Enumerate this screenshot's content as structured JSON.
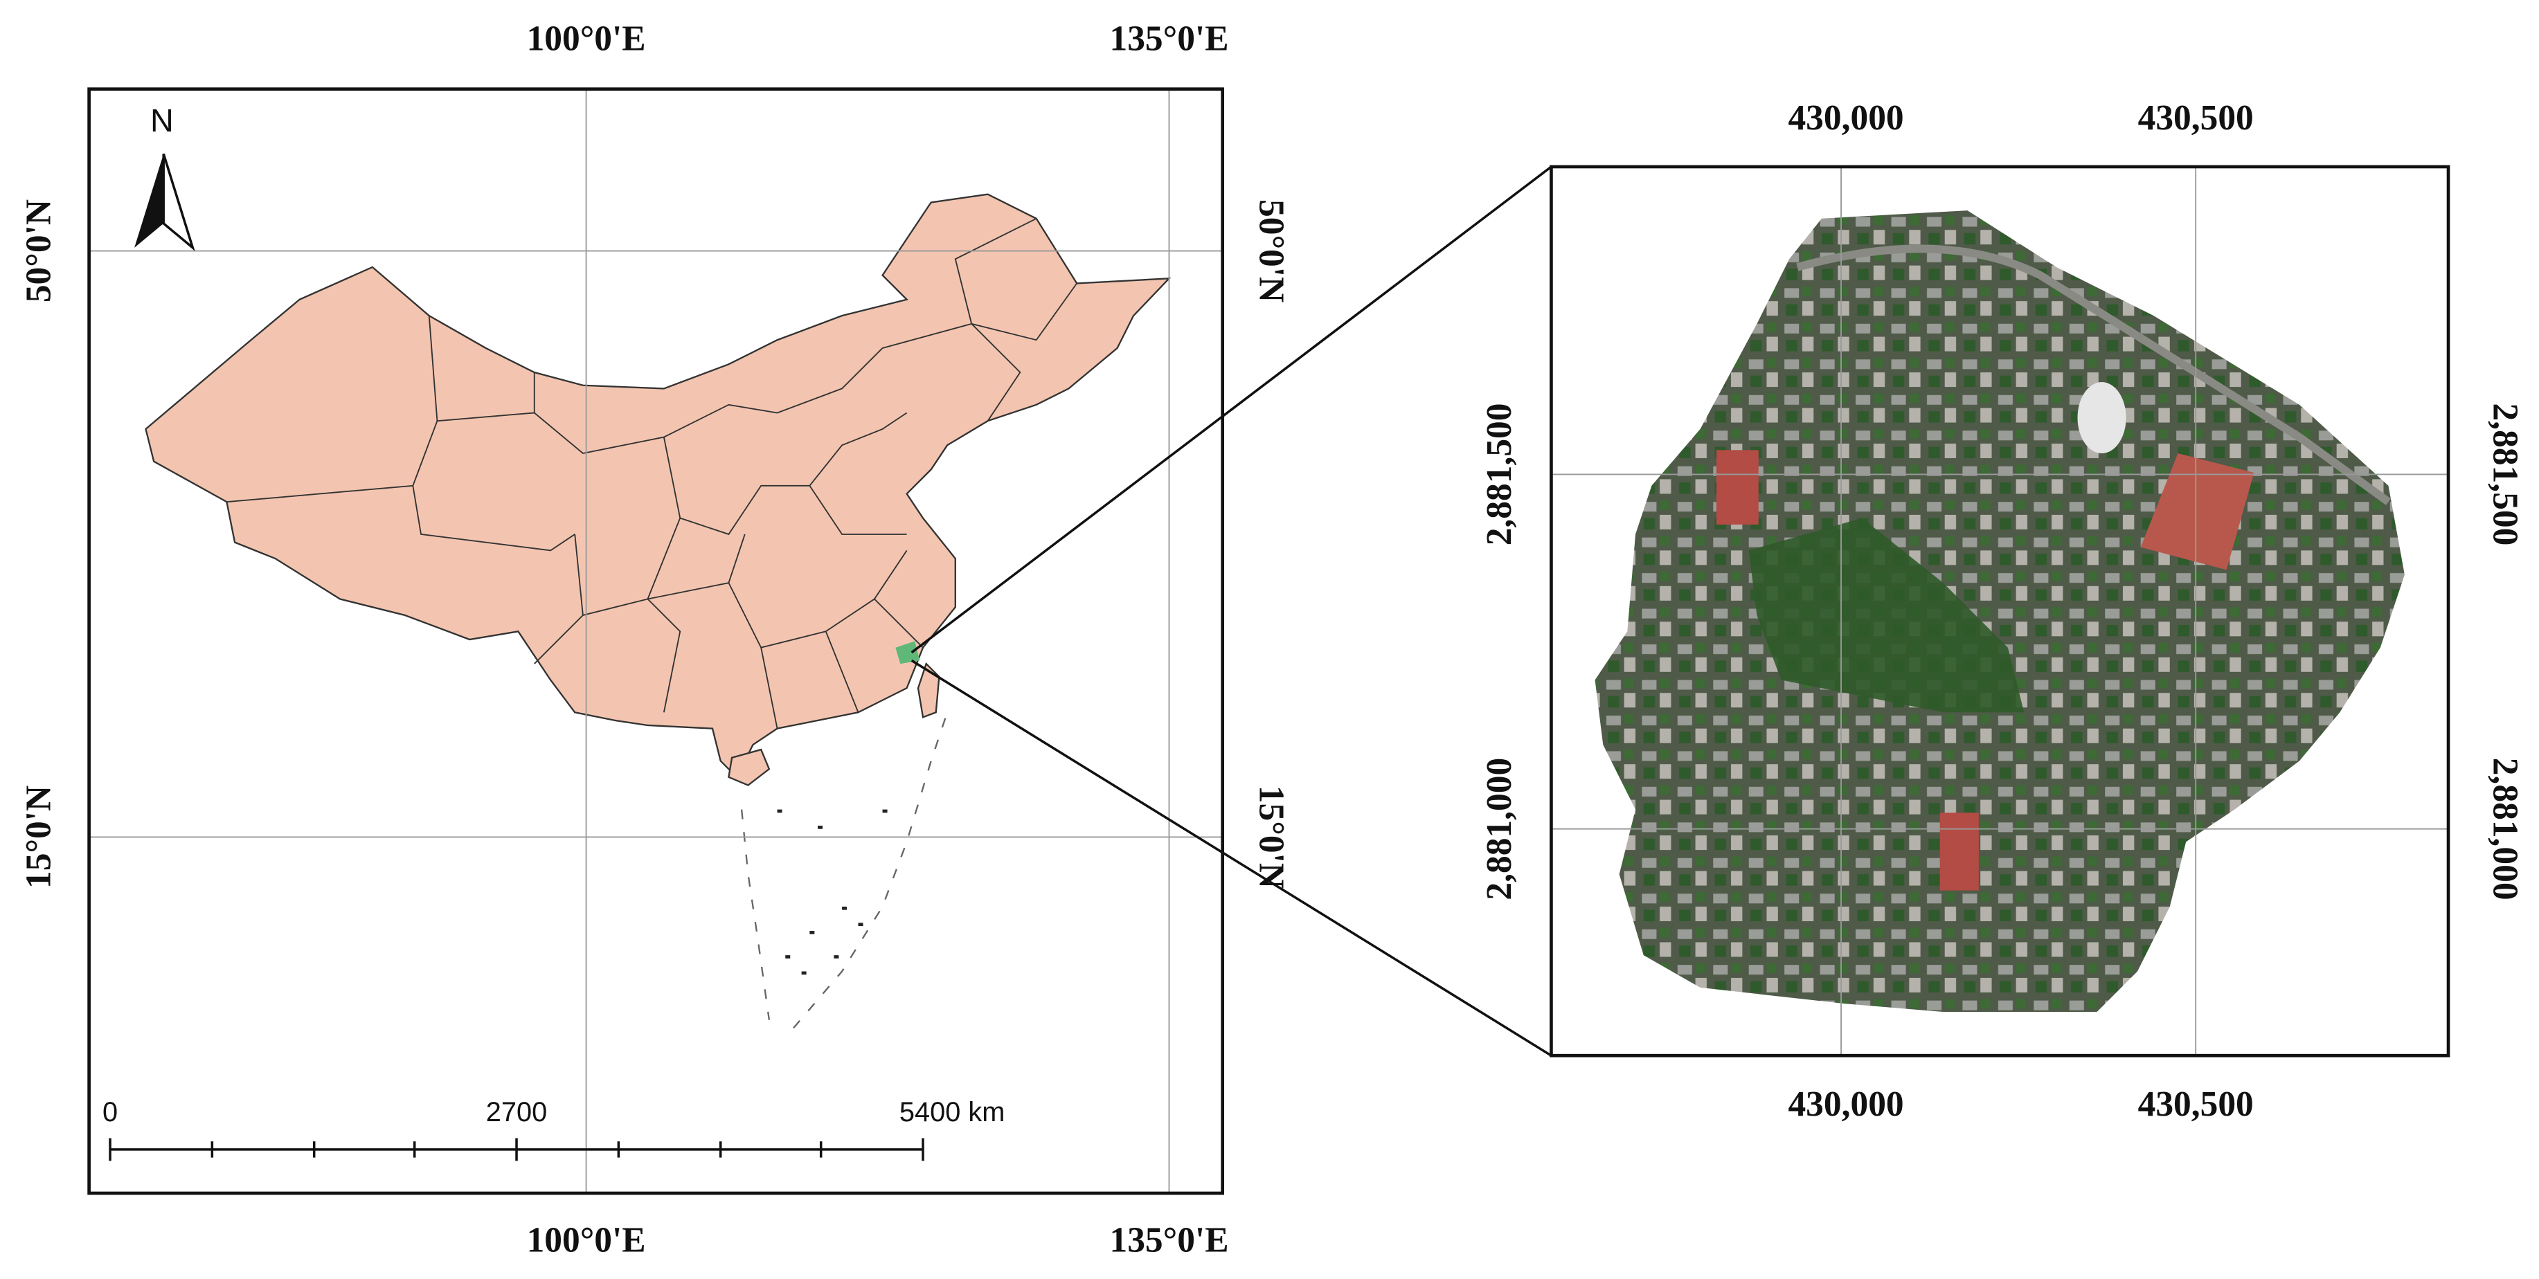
{
  "left_map": {
    "north": "N",
    "x_labels": [
      "100°0'E",
      "135°0'E"
    ],
    "y_labels": [
      "50°0'N",
      "15°0'N"
    ],
    "scale_bar": [
      "0",
      "2700",
      "5400 km"
    ]
  },
  "right_map": {
    "x_labels": [
      "430,000",
      "430,500"
    ],
    "y_labels": [
      "2,881,500",
      "2,881,000"
    ]
  }
}
